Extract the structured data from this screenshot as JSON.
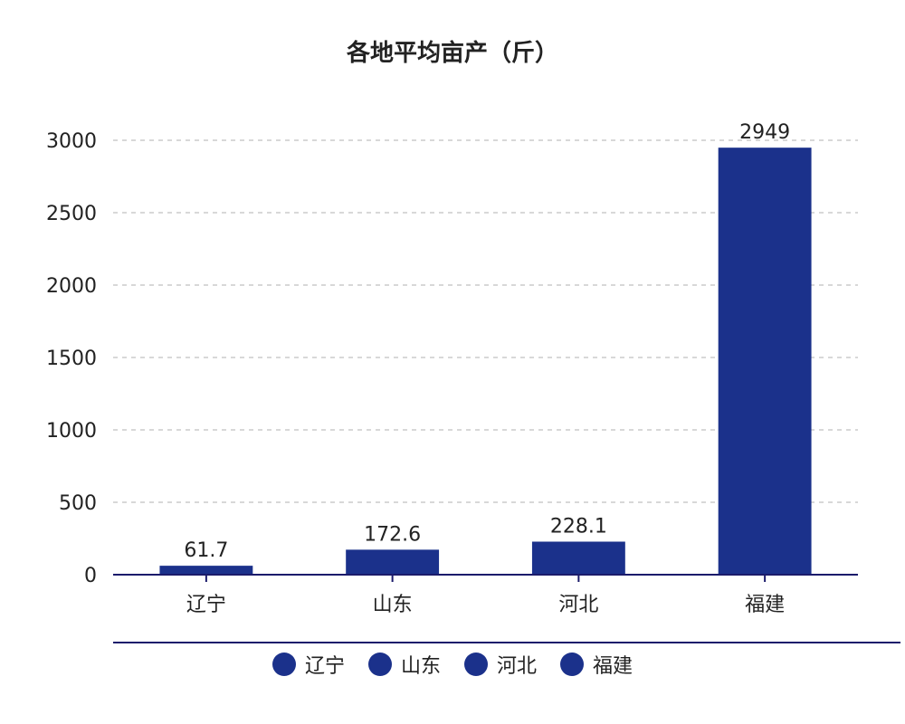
{
  "chart_data": {
    "type": "bar",
    "title": "各地平均亩产（斤）",
    "categories": [
      "辽宁",
      "山东",
      "河北",
      "福建"
    ],
    "values": [
      61.7,
      172.6,
      228.1,
      2949
    ],
    "value_labels": [
      "61.7",
      "172.6",
      "228.1",
      "2949"
    ],
    "ylim": [
      0,
      3000
    ],
    "yticks": [
      "0",
      "500",
      "1000",
      "1500",
      "2000",
      "2500",
      "3000"
    ],
    "grid": true,
    "legend_position": "bottom",
    "bar_color": "#1b318b"
  }
}
